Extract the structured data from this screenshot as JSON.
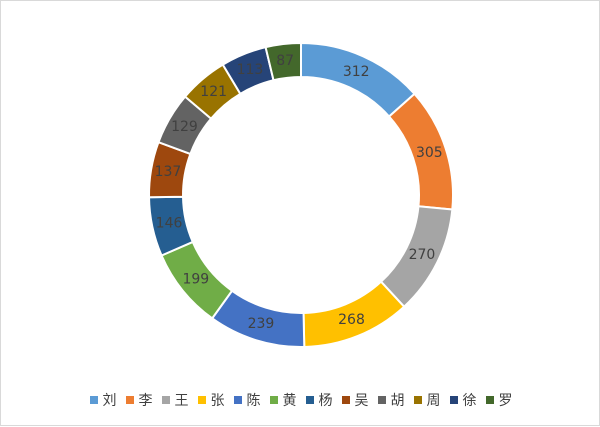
{
  "chart_data": {
    "type": "pie",
    "donut": true,
    "categories": [
      "刘",
      "李",
      "王",
      "张",
      "陈",
      "黄",
      "杨",
      "吴",
      "胡",
      "周",
      "徐",
      "罗"
    ],
    "values": [
      312,
      305,
      270,
      268,
      239,
      199,
      146,
      137,
      129,
      121,
      113,
      87
    ],
    "colors": [
      "#5B9BD5",
      "#ED7D31",
      "#A5A5A5",
      "#FFC000",
      "#4472C4",
      "#70AD47",
      "#255E91",
      "#9E480E",
      "#636363",
      "#997300",
      "#264478",
      "#43682B"
    ],
    "label_colors": [
      "#404040",
      "#404040",
      "#404040",
      "#404040",
      "#404040",
      "#404040",
      "#404040",
      "#404040",
      "#404040",
      "#404040",
      "#404040",
      "#404040"
    ],
    "legend_position": "bottom",
    "title": ""
  }
}
